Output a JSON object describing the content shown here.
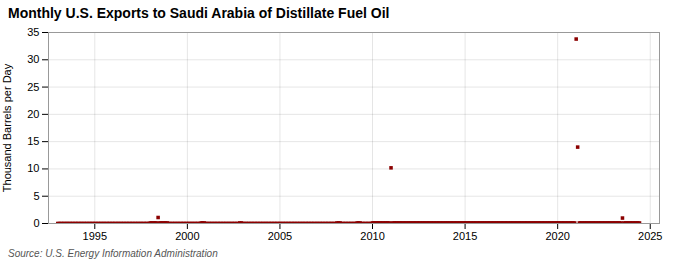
{
  "chart_data": {
    "type": "scatter",
    "title": "Monthly U.S. Exports to Saudi Arabia of Distillate Fuel Oil",
    "ylabel": "Thousand Barrels per Day",
    "source": "Source: U.S. Energy Information Administration",
    "color": "#8b0000",
    "marker": "square",
    "grid": true,
    "xlim": [
      1992.5,
      2025.5
    ],
    "xticks": [
      1995,
      2000,
      2005,
      2010,
      2015,
      2020,
      2025
    ],
    "ylim": [
      0,
      35
    ],
    "yticks": [
      0,
      5,
      10,
      15,
      20,
      25,
      30,
      35
    ],
    "x": [
      1993.0,
      1993.08,
      1993.17,
      1993.25,
      1993.33,
      1993.42,
      1993.5,
      1993.58,
      1993.67,
      1993.75,
      1993.83,
      1993.92,
      1994.0,
      1994.08,
      1994.17,
      1994.25,
      1994.33,
      1994.42,
      1994.5,
      1994.58,
      1994.67,
      1994.75,
      1994.83,
      1994.92,
      1995.0,
      1995.08,
      1995.17,
      1995.25,
      1995.33,
      1995.42,
      1995.5,
      1995.58,
      1995.67,
      1995.75,
      1995.83,
      1995.92,
      1996.0,
      1996.08,
      1996.17,
      1996.25,
      1996.33,
      1996.42,
      1996.5,
      1996.58,
      1996.67,
      1996.75,
      1996.83,
      1996.92,
      1997.0,
      1997.08,
      1997.17,
      1997.25,
      1997.33,
      1997.42,
      1997.5,
      1997.58,
      1997.67,
      1997.75,
      1997.83,
      1997.92,
      1998.0,
      1998.08,
      1998.17,
      1998.25,
      1998.33,
      1998.42,
      1998.5,
      1998.58,
      1998.67,
      1998.75,
      1998.83,
      1998.92,
      1999.0,
      1999.08,
      1999.17,
      1999.25,
      1999.33,
      1999.42,
      1999.5,
      1999.58,
      1999.67,
      1999.75,
      1999.83,
      1999.92,
      2000.0,
      2000.08,
      2000.17,
      2000.25,
      2000.33,
      2000.42,
      2000.5,
      2000.58,
      2000.67,
      2000.75,
      2000.83,
      2000.92,
      2001.0,
      2001.08,
      2001.17,
      2001.25,
      2001.33,
      2001.42,
      2001.5,
      2001.58,
      2001.67,
      2001.75,
      2001.83,
      2001.92,
      2002.0,
      2002.08,
      2002.17,
      2002.25,
      2002.33,
      2002.42,
      2002.5,
      2002.58,
      2002.67,
      2002.75,
      2002.83,
      2002.92,
      2003.0,
      2003.08,
      2003.17,
      2003.25,
      2003.33,
      2003.42,
      2003.5,
      2003.58,
      2003.67,
      2003.75,
      2003.83,
      2003.92,
      2004.0,
      2004.08,
      2004.17,
      2004.25,
      2004.33,
      2004.42,
      2004.5,
      2004.58,
      2004.67,
      2004.75,
      2004.83,
      2004.92,
      2005.0,
      2005.08,
      2005.17,
      2005.25,
      2005.33,
      2005.42,
      2005.5,
      2005.58,
      2005.67,
      2005.75,
      2005.83,
      2005.92,
      2006.0,
      2006.08,
      2006.17,
      2006.25,
      2006.33,
      2006.42,
      2006.5,
      2006.58,
      2006.67,
      2006.75,
      2006.83,
      2006.92,
      2007.0,
      2007.08,
      2007.17,
      2007.25,
      2007.33,
      2007.42,
      2007.5,
      2007.58,
      2007.67,
      2007.75,
      2007.83,
      2007.92,
      2008.0,
      2008.08,
      2008.17,
      2008.25,
      2008.33,
      2008.42,
      2008.5,
      2008.58,
      2008.67,
      2008.75,
      2008.83,
      2008.92,
      2009.0,
      2009.08,
      2009.17,
      2009.25,
      2009.33,
      2009.42,
      2009.5,
      2009.58,
      2009.67,
      2009.75,
      2009.83,
      2009.92,
      2010.0,
      2010.08,
      2010.17,
      2010.25,
      2010.33,
      2010.42,
      2010.5,
      2010.58,
      2010.67,
      2010.75,
      2010.83,
      2010.92,
      2011.0,
      2011.08,
      2011.17,
      2011.25,
      2011.33,
      2011.42,
      2011.5,
      2011.58,
      2011.67,
      2011.75,
      2011.83,
      2011.92,
      2012.0,
      2012.08,
      2012.17,
      2012.25,
      2012.33,
      2012.42,
      2012.5,
      2012.58,
      2012.67,
      2012.75,
      2012.83,
      2012.92,
      2013.0,
      2013.08,
      2013.17,
      2013.25,
      2013.33,
      2013.42,
      2013.5,
      2013.58,
      2013.67,
      2013.75,
      2013.83,
      2013.92,
      2014.0,
      2014.08,
      2014.17,
      2014.25,
      2014.33,
      2014.42,
      2014.5,
      2014.58,
      2014.67,
      2014.75,
      2014.83,
      2014.92,
      2015.0,
      2015.08,
      2015.17,
      2015.25,
      2015.33,
      2015.42,
      2015.5,
      2015.58,
      2015.67,
      2015.75,
      2015.83,
      2015.92,
      2016.0,
      2016.08,
      2016.17,
      2016.25,
      2016.33,
      2016.42,
      2016.5,
      2016.58,
      2016.67,
      2016.75,
      2016.83,
      2016.92,
      2017.0,
      2017.08,
      2017.17,
      2017.25,
      2017.33,
      2017.42,
      2017.5,
      2017.58,
      2017.67,
      2017.75,
      2017.83,
      2017.92,
      2018.0,
      2018.08,
      2018.17,
      2018.25,
      2018.33,
      2018.42,
      2018.5,
      2018.58,
      2018.67,
      2018.75,
      2018.83,
      2018.92,
      2019.0,
      2019.08,
      2019.17,
      2019.25,
      2019.33,
      2019.42,
      2019.5,
      2019.58,
      2019.67,
      2019.75,
      2019.83,
      2019.92,
      2020.0,
      2020.08,
      2020.17,
      2020.25,
      2020.33,
      2020.42,
      2020.5,
      2020.58,
      2020.67,
      2020.75,
      2020.83,
      2020.92,
      2021.0,
      2021.08,
      2021.17,
      2021.25,
      2021.33,
      2021.42,
      2021.5,
      2021.58,
      2021.67,
      2021.75,
      2021.83,
      2021.92,
      2022.0,
      2022.08,
      2022.17,
      2022.25,
      2022.33,
      2022.42,
      2022.5,
      2022.58,
      2022.67,
      2022.75,
      2022.83,
      2022.92,
      2023.0,
      2023.08,
      2023.17,
      2023.25,
      2023.33,
      2023.42,
      2023.5,
      2023.58,
      2023.67,
      2023.75,
      2023.83,
      2023.92,
      2024.0,
      2024.08,
      2024.17,
      2024.25,
      2024.33,
      2024.42
    ],
    "values": [
      0,
      0,
      0,
      0,
      0,
      0,
      0,
      0,
      0,
      0,
      0,
      0,
      0,
      0,
      0,
      0,
      0,
      0,
      0,
      0,
      0,
      0,
      0,
      0,
      0,
      0,
      0,
      0,
      0,
      0,
      0,
      0,
      0,
      0,
      0,
      0,
      0,
      0,
      0,
      0,
      0,
      0,
      0,
      0,
      0,
      0,
      0,
      0,
      0,
      0,
      0,
      0,
      0,
      0,
      0,
      0,
      0,
      0,
      0,
      0,
      0.1,
      0.1,
      0.1,
      0.1,
      0.1,
      1.1,
      0.1,
      0.1,
      0.1,
      0.1,
      0.1,
      0.1,
      0,
      0,
      0,
      0,
      0,
      0,
      0,
      0,
      0,
      0,
      0,
      0,
      0,
      0,
      0,
      0,
      0,
      0,
      0,
      0,
      0,
      0.1,
      0.1,
      0.1,
      0,
      0,
      0,
      0,
      0,
      0,
      0,
      0,
      0,
      0,
      0,
      0,
      0,
      0,
      0,
      0,
      0,
      0,
      0,
      0,
      0,
      0,
      0.1,
      0.1,
      0,
      0,
      0,
      0,
      0,
      0,
      0,
      0,
      0,
      0,
      0,
      0,
      0,
      0,
      0,
      0,
      0,
      0,
      0,
      0,
      0,
      0,
      0,
      0,
      0,
      0,
      0,
      0,
      0,
      0,
      0,
      0,
      0,
      0,
      0,
      0,
      0,
      0,
      0,
      0,
      0,
      0,
      0,
      0,
      0,
      0,
      0,
      0,
      0,
      0,
      0,
      0,
      0,
      0,
      0,
      0,
      0,
      0,
      0,
      0,
      0,
      0.1,
      0.1,
      0.1,
      0,
      0,
      0,
      0,
      0,
      0,
      0,
      0,
      0,
      0,
      0.1,
      0.1,
      0.1,
      0,
      0,
      0,
      0,
      0,
      0,
      0,
      0.1,
      0.1,
      0.1,
      0.1,
      0.1,
      0.1,
      0.1,
      0.1,
      0.1,
      0.1,
      0.1,
      0.1,
      10.2,
      0.1,
      0.1,
      0.1,
      0.1,
      0.1,
      0.1,
      0.1,
      0.1,
      0.1,
      0.1,
      0.1,
      0.1,
      0.1,
      0.1,
      0.1,
      0.1,
      0.1,
      0.1,
      0.1,
      0.1,
      0.1,
      0.1,
      0.1,
      0.1,
      0.1,
      0.1,
      0.1,
      0.1,
      0.1,
      0.1,
      0.1,
      0.1,
      0.1,
      0.1,
      0.1,
      0.1,
      0.1,
      0.1,
      0.1,
      0.1,
      0.1,
      0.1,
      0.1,
      0.1,
      0.1,
      0.1,
      0.1,
      0.1,
      0.1,
      0.1,
      0.1,
      0.1,
      0.1,
      0.1,
      0.1,
      0.1,
      0.1,
      0.1,
      0.1,
      0.1,
      0.1,
      0.1,
      0.1,
      0.1,
      0.1,
      0.1,
      0.1,
      0.1,
      0.1,
      0.1,
      0.1,
      0.1,
      0.1,
      0.1,
      0.1,
      0.1,
      0.1,
      0.1,
      0.1,
      0.1,
      0.1,
      0.1,
      0.1,
      0.1,
      0.1,
      0.1,
      0.1,
      0.1,
      0.1,
      0.1,
      0.1,
      0.1,
      0.1,
      0.1,
      0.1,
      0.1,
      0.1,
      0.1,
      0.1,
      0.1,
      0.1,
      0.1,
      0.1,
      0.1,
      0.1,
      0.1,
      0.1,
      0.1,
      0.1,
      0.1,
      0.1,
      0.1,
      0.1,
      0.1,
      0.1,
      0.1,
      0.1,
      0.1,
      0.1,
      33.8,
      14.0,
      0.1,
      0.1,
      0.1,
      0.1,
      0.1,
      0.1,
      0.1,
      0.1,
      0.1,
      0.1,
      0.1,
      0.1,
      0.1,
      0.1,
      0.1,
      0.1,
      0.1,
      0.1,
      0.1,
      0.1,
      0.1,
      0.1,
      0.1,
      0.1,
      0.1,
      0.1,
      0.1,
      0.1,
      1.0,
      0.1,
      0.1,
      0.1,
      0.1,
      0.1,
      0.1,
      0.1,
      0.1,
      0.1,
      0.1,
      0.1
    ]
  }
}
